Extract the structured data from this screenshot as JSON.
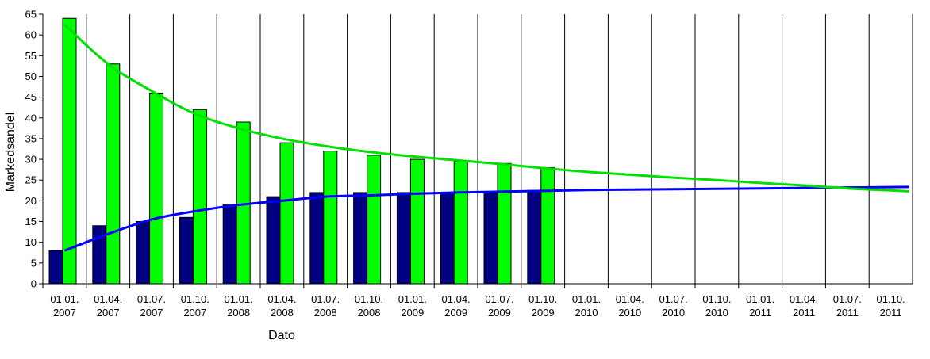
{
  "chart_data": {
    "type": "bar",
    "title": "",
    "xlabel": "Dato",
    "ylabel": "Markedsandel",
    "ylim": [
      0,
      65
    ],
    "yticks": [
      0,
      5,
      10,
      15,
      20,
      25,
      30,
      35,
      40,
      45,
      50,
      55,
      60,
      65
    ],
    "grid": "vertical",
    "legend": "none",
    "categories": [
      [
        "01.01.",
        "2007"
      ],
      [
        "01.04.",
        "2007"
      ],
      [
        "01.07.",
        "2007"
      ],
      [
        "01.10.",
        "2007"
      ],
      [
        "01.01.",
        "2008"
      ],
      [
        "01.04.",
        "2008"
      ],
      [
        "01.07.",
        "2008"
      ],
      [
        "01.10.",
        "2008"
      ],
      [
        "01.01.",
        "2009"
      ],
      [
        "01.04.",
        "2009"
      ],
      [
        "01.07.",
        "2009"
      ],
      [
        "01.10.",
        "2009"
      ],
      [
        "01.01.",
        "2010"
      ],
      [
        "01.04.",
        "2010"
      ],
      [
        "01.07.",
        "2010"
      ],
      [
        "01.10.",
        "2010"
      ],
      [
        "01.01.",
        "2011"
      ],
      [
        "01.04.",
        "2011"
      ],
      [
        "01.07.",
        "2011"
      ],
      [
        "01.10.",
        "2011"
      ]
    ],
    "series": [
      {
        "type": "bar",
        "color": "#000080",
        "values": [
          8,
          14,
          15,
          16,
          19,
          21,
          22,
          22,
          22,
          22,
          22,
          22.5,
          null,
          null,
          null,
          null,
          null,
          null,
          null,
          null
        ]
      },
      {
        "type": "bar",
        "color": "#00ff00",
        "values": [
          64,
          53,
          46,
          42,
          39,
          34,
          32,
          31,
          30,
          29.5,
          29,
          28,
          null,
          null,
          null,
          null,
          null,
          null,
          null,
          null
        ]
      },
      {
        "type": "line",
        "color": "#0000ff",
        "values": [
          8,
          12,
          15.5,
          17.5,
          19,
          20,
          21,
          21.3,
          21.7,
          22,
          22.2,
          22.4,
          22.6,
          22.7,
          22.8,
          22.9,
          23,
          23.1,
          23.2,
          23.3
        ]
      },
      {
        "type": "line",
        "color": "#00e000",
        "values": [
          62.5,
          53,
          46.5,
          41,
          37.5,
          35,
          33.2,
          31.8,
          30.7,
          29.8,
          28.9,
          27.9,
          27,
          26.3,
          25.6,
          25,
          24.3,
          23.7,
          23,
          22.5
        ]
      }
    ]
  }
}
